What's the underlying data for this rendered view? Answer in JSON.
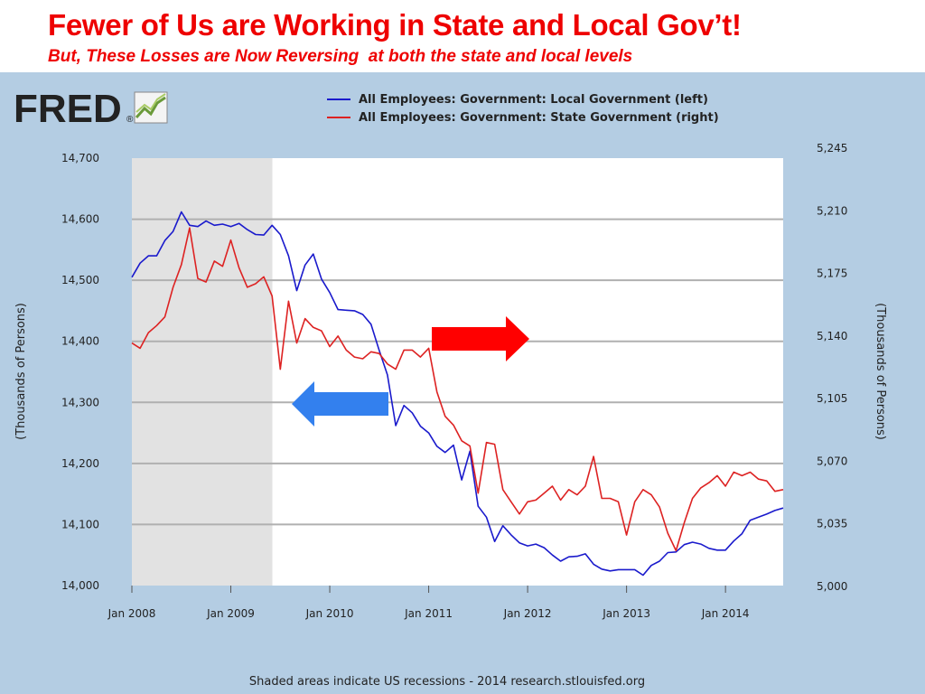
{
  "slide": {
    "title": "Fewer of Us are Working in State and Local Gov’t!",
    "subtitle": "But, These Losses are Now Reversing  at both the state and local levels"
  },
  "logo": {
    "text": "FRED",
    "mark": "®"
  },
  "note": "Shaded areas indicate US recessions - 2014 research.stlouisfed.org",
  "colors": {
    "local": "#1a1acc",
    "state": "#dd2222",
    "right_arrow": "#ff0000",
    "left_arrow": "#3380ee",
    "recession": "#e2e2e2",
    "title": "#ee0000"
  },
  "chart_data": {
    "type": "line",
    "grid": true,
    "legend_position": "top",
    "recession_shading": {
      "start": 2007.92,
      "end": 2009.42
    },
    "x_ticks": [
      {
        "label": "Jan 2008",
        "x": 2008.0
      },
      {
        "label": "Jan 2009",
        "x": 2009.0
      },
      {
        "label": "Jan 2010",
        "x": 2010.0
      },
      {
        "label": "Jan 2011",
        "x": 2011.0
      },
      {
        "label": "Jan 2012",
        "x": 2012.0
      },
      {
        "label": "Jan 2013",
        "x": 2013.0
      },
      {
        "label": "Jan 2014",
        "x": 2014.0
      }
    ],
    "xlim": [
      2008.0,
      2014.583
    ],
    "y_left": {
      "label": "(Thousands of Persons)",
      "range": [
        14000,
        14700
      ],
      "ticks": [
        "14,000",
        "14,100",
        "14,200",
        "14,300",
        "14,400",
        "14,500",
        "14,600",
        "14,700"
      ]
    },
    "y_right": {
      "label": "(Thousands of Persons)",
      "range": [
        5000,
        5245
      ],
      "ticks": [
        "5,000",
        "5,035",
        "5,070",
        "5,105",
        "5,140",
        "5,175",
        "5,210",
        "5,245"
      ]
    },
    "start_year": 2008,
    "series": [
      {
        "name": "All Employees: Government: Local Government (left)",
        "axis": "left",
        "values": [
          14505,
          14528,
          14540,
          14540,
          14565,
          14580,
          14612,
          14590,
          14588,
          14597,
          14590,
          14592,
          14588,
          14593,
          14583,
          14575,
          14574,
          14590,
          14575,
          14540,
          14483,
          14525,
          14543,
          14502,
          14480,
          14452,
          14451,
          14450,
          14444,
          14428,
          14385,
          14345,
          14262,
          14295,
          14283,
          14261,
          14250,
          14228,
          14218,
          14230,
          14173,
          14220,
          14130,
          14112,
          14072,
          14098,
          14083,
          14070,
          14065,
          14068,
          14062,
          14050,
          14040,
          14047,
          14048,
          14052,
          14035,
          14027,
          14024,
          14026,
          14026,
          14026,
          14017,
          14033,
          14040,
          14054,
          14055,
          14067,
          14071,
          14068,
          14061,
          14058,
          14058,
          14073,
          14085,
          14107,
          14112,
          14117,
          14123,
          14127
        ]
      },
      {
        "name": "All Employees: Government: State Government (right)",
        "axis": "right",
        "values": [
          5139,
          5136,
          5145,
          5149,
          5154,
          5171,
          5184,
          5205,
          5176,
          5174,
          5186,
          5183,
          5198,
          5182,
          5171,
          5173,
          5177,
          5166,
          5124,
          5163,
          5139,
          5153,
          5148,
          5146,
          5137,
          5143,
          5135,
          5131,
          5130,
          5134,
          5133,
          5127,
          5124,
          5135,
          5135,
          5131,
          5136,
          5111,
          5097,
          5092,
          5083,
          5080,
          5053,
          5082,
          5081,
          5055,
          5048,
          5041,
          5048,
          5049,
          5053,
          5057,
          5049,
          5055,
          5052,
          5057,
          5074,
          5050,
          5050,
          5048,
          5029,
          5048,
          5055,
          5052,
          5045,
          5030,
          5020,
          5036,
          5050,
          5056,
          5059,
          5063,
          5057,
          5065,
          5063,
          5065,
          5061,
          5060,
          5054,
          5055
        ]
      }
    ]
  }
}
